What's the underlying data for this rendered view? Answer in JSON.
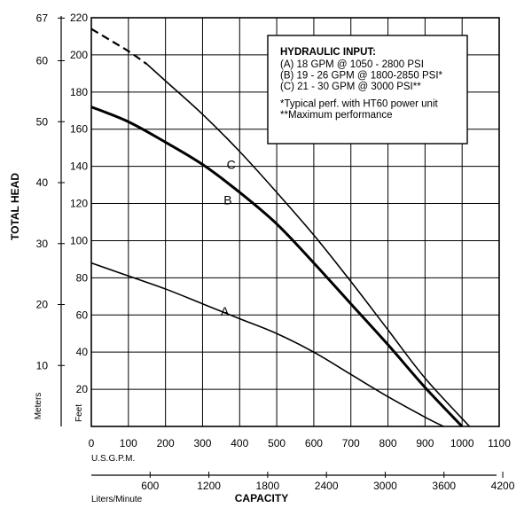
{
  "chart_data": {
    "type": "line",
    "xlabel": "CAPACITY",
    "ylabel": "TOTAL HEAD",
    "x_axis": {
      "unit_label": "U.S.G.P.M.",
      "range": [
        0,
        1100
      ],
      "ticks": [
        "0",
        "100",
        "200",
        "300",
        "400",
        "500",
        "600",
        "700",
        "800",
        "900",
        "1000",
        "1100"
      ]
    },
    "x_axis_secondary": {
      "unit_label": "Liters/Minute",
      "ticks": [
        "600",
        "1200",
        "1800",
        "2400",
        "3000",
        "3600",
        "4200"
      ]
    },
    "y_axis": {
      "unit_label": "Feet",
      "range": [
        0,
        220
      ],
      "ticks": [
        "20",
        "40",
        "60",
        "80",
        "100",
        "120",
        "140",
        "160",
        "180",
        "200",
        "220"
      ]
    },
    "y_axis_secondary": {
      "unit_label": "Meters",
      "ticks": [
        "10",
        "20",
        "30",
        "40",
        "50",
        "60",
        "67"
      ]
    },
    "grid": true,
    "legend": {
      "title": "HYDRAULIC INPUT:",
      "lines": [
        "(A) 18 GPM @ 1050 - 2800 PSI",
        "(B) 19 - 26 GPM @ 1800-2850 PSI*",
        "(C) 21 - 30 GPM @ 3000 PSI**",
        "",
        "*Typical perf. with HT60 power unit",
        "**Maximum performance"
      ]
    },
    "series": [
      {
        "name": "A",
        "x": [
          0,
          100,
          200,
          300,
          400,
          500,
          600,
          700,
          800,
          900,
          950
        ],
        "y": [
          88,
          81,
          74,
          66,
          58,
          50,
          40,
          28,
          16,
          5,
          0
        ]
      },
      {
        "name": "B",
        "x": [
          0,
          100,
          200,
          300,
          400,
          500,
          600,
          700,
          800,
          900,
          1000
        ],
        "y": [
          172,
          164,
          153,
          141,
          126,
          109,
          88,
          66,
          44,
          21,
          0
        ]
      },
      {
        "name": "C",
        "dashed_until_x": 150,
        "x": [
          0,
          50,
          100,
          150,
          200,
          300,
          400,
          500,
          600,
          700,
          800,
          900,
          1020
        ],
        "y": [
          214,
          208,
          202,
          195,
          186,
          168,
          148,
          126,
          103,
          78,
          52,
          26,
          0
        ]
      }
    ]
  }
}
